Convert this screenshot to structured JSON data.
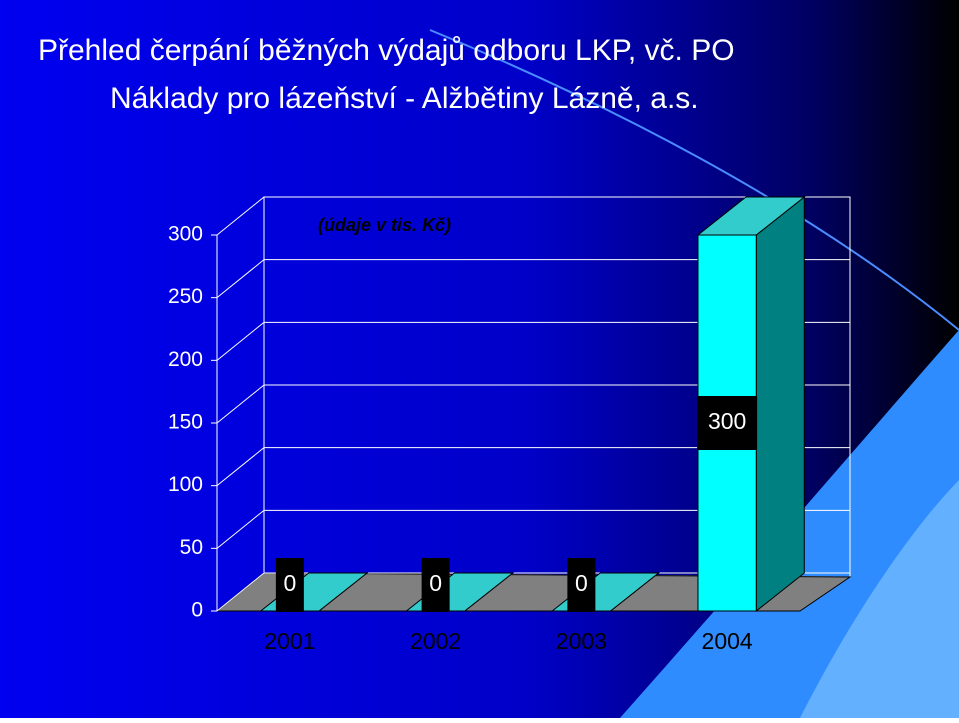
{
  "chart_data": {
    "type": "bar3d",
    "title": "Přehled čerpání běžných výdajů odboru LKP, vč. PO",
    "subtitle": "Náklady pro lázeňství - Alžbětiny Lázně, a.s.",
    "annotation": "(údaje v tis. Kč)",
    "categories": [
      "2001",
      "2002",
      "2003",
      "2004"
    ],
    "values": [
      0,
      0,
      0,
      300
    ],
    "color": "#00ffff",
    "ylim": [
      0,
      300
    ],
    "yticks": [
      0,
      50,
      100,
      150,
      200,
      250,
      300
    ],
    "grid": true
  }
}
